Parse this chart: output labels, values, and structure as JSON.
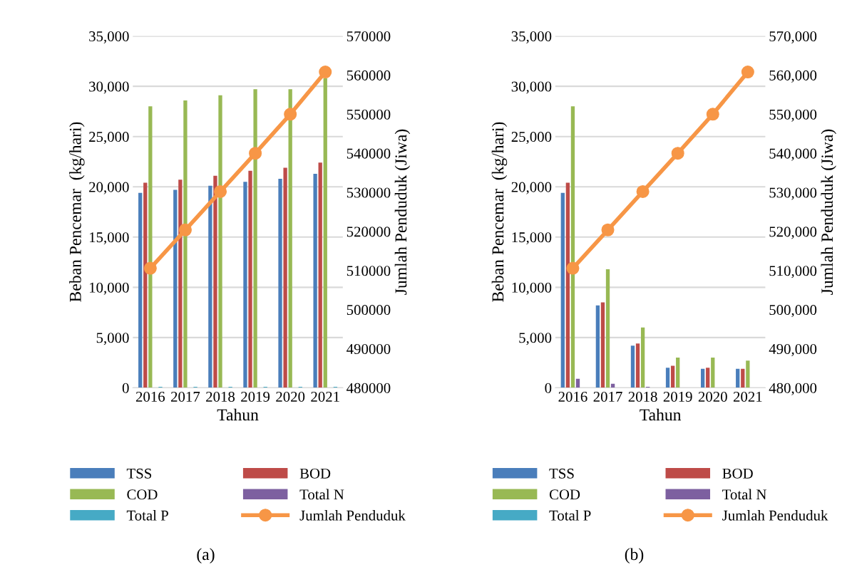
{
  "chart_data": [
    {
      "type": "bar",
      "categories": [
        "2016",
        "2017",
        "2018",
        "2019",
        "2020",
        "2021"
      ],
      "xlabel": "Tahun",
      "ylabel": "Beban Pencemar  (kg/hari)",
      "y2label": "Jumlah Penduduk (Jiwa)",
      "ylim": [
        0,
        35000
      ],
      "yticks": [
        {
          "value": 0,
          "label": "0"
        },
        {
          "value": 5000,
          "label": "5,000"
        },
        {
          "value": 10000,
          "label": "10,000"
        },
        {
          "value": 15000,
          "label": "15,000"
        },
        {
          "value": 20000,
          "label": "20,000"
        },
        {
          "value": 25000,
          "label": "25,000"
        },
        {
          "value": 30000,
          "label": "30,000"
        },
        {
          "value": 35000,
          "label": "35,000"
        }
      ],
      "y2lim": [
        480000,
        570000
      ],
      "y2ticks": [
        480000,
        490000,
        500000,
        510000,
        520000,
        530000,
        540000,
        550000,
        560000,
        570000
      ],
      "grid": "y",
      "legend": "bottom",
      "annotations": [
        "(a)"
      ],
      "series": [
        {
          "name": "TSS",
          "color": "#4a7ebb",
          "values": [
            19400,
            19700,
            20100,
            20500,
            20800,
            21300
          ]
        },
        {
          "name": "BOD",
          "color": "#be4b48",
          "values": [
            20400,
            20700,
            21100,
            21600,
            21900,
            22400
          ]
        },
        {
          "name": "COD",
          "color": "#98b954",
          "values": [
            28000,
            28600,
            29100,
            29700,
            29700,
            30800
          ]
        },
        {
          "name": "Total N",
          "color": "#7d60a0",
          "values": [
            0,
            0,
            0,
            0,
            0,
            0
          ]
        },
        {
          "name": "Total P",
          "color": "#46aac5",
          "values": [
            100,
            100,
            100,
            100,
            100,
            100
          ]
        },
        {
          "name": "Jumlah Penduduk",
          "type": "line",
          "axis": "y2",
          "color": "#f79646",
          "marker": "circle",
          "line_style": "solid",
          "values": [
            510600,
            520400,
            530200,
            540000,
            550000,
            560800
          ]
        }
      ]
    },
    {
      "type": "bar",
      "categories": [
        "2016",
        "2017",
        "2018",
        "2019",
        "2020",
        "2021"
      ],
      "xlabel": "Tahun",
      "ylabel": "Beban Pencemar  (kg/hari)",
      "y2label": "Jumlah Penduduk (Jiwa)",
      "ylim": [
        0,
        35000
      ],
      "yticks": [
        {
          "value": 0,
          "label": "0"
        },
        {
          "value": 5000,
          "label": "5,000"
        },
        {
          "value": 10000,
          "label": "10,000"
        },
        {
          "value": 15000,
          "label": "15,000"
        },
        {
          "value": 20000,
          "label": "20,000"
        },
        {
          "value": 25000,
          "label": "25,000"
        },
        {
          "value": 30000,
          "label": "30,000"
        },
        {
          "value": 35000,
          "label": "35,000"
        }
      ],
      "y2lim": [
        480000,
        570000
      ],
      "y2ticks": [
        {
          "value": 480000,
          "label": "480,000"
        },
        {
          "value": 490000,
          "label": "490,000"
        },
        {
          "value": 500000,
          "label": "500,000"
        },
        {
          "value": 510000,
          "label": "510,000"
        },
        {
          "value": 520000,
          "label": "520,000"
        },
        {
          "value": 530000,
          "label": "530,000"
        },
        {
          "value": 540000,
          "label": "540,000"
        },
        {
          "value": 550000,
          "label": "550,000"
        },
        {
          "value": 560000,
          "label": "560,000"
        },
        {
          "value": 570000,
          "label": "570,000"
        }
      ],
      "grid": "y",
      "legend": "bottom",
      "annotations": [
        "(b)"
      ],
      "series": [
        {
          "name": "TSS",
          "color": "#4a7ebb",
          "values": [
            19400,
            8200,
            4200,
            2000,
            1900,
            1900
          ]
        },
        {
          "name": "BOD",
          "color": "#be4b48",
          "values": [
            20400,
            8500,
            4400,
            2200,
            2000,
            1900
          ]
        },
        {
          "name": "COD",
          "color": "#98b954",
          "values": [
            28000,
            11800,
            6000,
            3000,
            3000,
            2700
          ]
        },
        {
          "name": "Total N",
          "color": "#7d60a0",
          "values": [
            900,
            400,
            100,
            0,
            0,
            0
          ]
        },
        {
          "name": "Total P",
          "color": "#46aac5",
          "values": [
            0,
            0,
            0,
            0,
            0,
            0
          ]
        },
        {
          "name": "Jumlah Penduduk",
          "type": "line",
          "axis": "y2",
          "color": "#f79646",
          "marker": "circle",
          "line_style": "solid",
          "values": [
            510600,
            520400,
            530200,
            540000,
            550000,
            560800
          ]
        }
      ]
    }
  ]
}
